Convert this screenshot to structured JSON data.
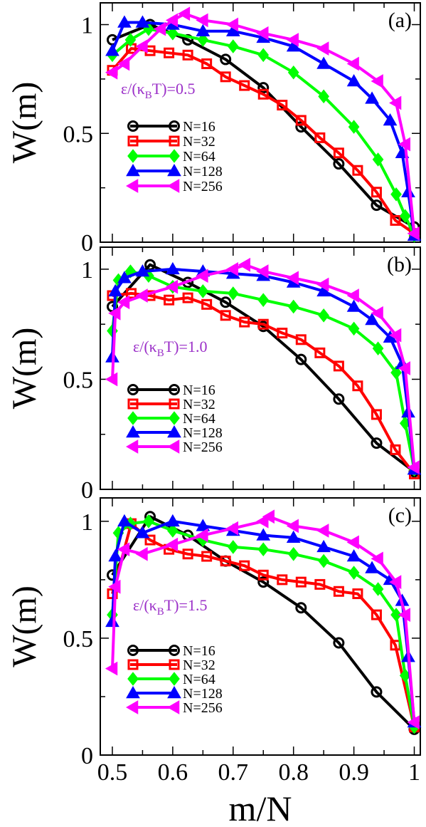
{
  "figure": {
    "xlabel": "m/N",
    "x_tick_labels": [
      "0.5",
      "0.6",
      "0.7",
      "0.8",
      "0.9",
      "1"
    ],
    "colors": {
      "N=16": "#000000",
      "N=32": "#ff0000",
      "N=64": "#00ff00",
      "N=128": "#0000ff",
      "N=256": "#ff00ff",
      "annotation": "#9b30c8"
    }
  },
  "chart_data": [
    {
      "type": "line",
      "panel_label": "(a)",
      "annotation": "ε/(κ_BT)=0.5",
      "ylabel": "W(m)",
      "xlim": [
        0.48,
        1.01
      ],
      "ylim": [
        0,
        1.1
      ],
      "y_tick_labels": [
        "0",
        "0.5",
        "1"
      ],
      "legend_placement": "left-center",
      "series": [
        {
          "name": "N=16",
          "marker": "circle",
          "x": [
            0.5,
            0.5625,
            0.625,
            0.6875,
            0.75,
            0.8125,
            0.875,
            0.9375,
            1.0
          ],
          "y": [
            0.93,
            1.0,
            0.93,
            0.84,
            0.71,
            0.53,
            0.36,
            0.17,
            0.07
          ]
        },
        {
          "name": "N=32",
          "marker": "square",
          "x": [
            0.5,
            0.53125,
            0.5625,
            0.59375,
            0.625,
            0.65625,
            0.6875,
            0.71875,
            0.75,
            0.78125,
            0.8125,
            0.84375,
            0.875,
            0.90625,
            0.9375,
            0.96875,
            1.0
          ],
          "y": [
            0.79,
            0.89,
            0.88,
            0.87,
            0.86,
            0.82,
            0.76,
            0.72,
            0.68,
            0.63,
            0.56,
            0.48,
            0.41,
            0.33,
            0.23,
            0.1,
            0.04
          ]
        },
        {
          "name": "N=64",
          "marker": "diamond",
          "x": [
            0.5,
            0.53,
            0.56,
            0.6,
            0.65,
            0.7,
            0.75,
            0.8,
            0.85,
            0.9,
            0.94,
            0.97,
            0.985,
            1.0
          ],
          "y": [
            0.86,
            0.93,
            0.98,
            0.96,
            0.93,
            0.9,
            0.86,
            0.78,
            0.67,
            0.53,
            0.38,
            0.22,
            0.12,
            0.03
          ]
        },
        {
          "name": "N=128",
          "marker": "triangle-up",
          "x": [
            0.5,
            0.52,
            0.55,
            0.6,
            0.65,
            0.7,
            0.75,
            0.8,
            0.85,
            0.9,
            0.93,
            0.96,
            0.98,
            0.99,
            1.0
          ],
          "y": [
            0.88,
            1.01,
            1.01,
            1.0,
            0.97,
            0.97,
            0.94,
            0.9,
            0.82,
            0.74,
            0.66,
            0.56,
            0.41,
            0.23,
            0.03
          ]
        },
        {
          "name": "N=256",
          "marker": "triangle-left",
          "x": [
            0.5,
            0.52,
            0.55,
            0.58,
            0.6,
            0.62,
            0.65,
            0.7,
            0.75,
            0.8,
            0.85,
            0.9,
            0.94,
            0.97,
            0.985,
            1.0
          ],
          "y": [
            0.78,
            0.82,
            0.9,
            0.98,
            1.02,
            1.05,
            1.02,
            1.0,
            0.96,
            0.93,
            0.89,
            0.82,
            0.74,
            0.64,
            0.45,
            0.04
          ]
        }
      ]
    },
    {
      "type": "line",
      "panel_label": "(b)",
      "annotation": "ε/(κ_BT)=1.0",
      "ylabel": "W(m)",
      "xlim": [
        0.48,
        1.01
      ],
      "ylim": [
        0,
        1.1
      ],
      "y_tick_labels": [
        "0",
        "0.5",
        "1"
      ],
      "legend_placement": "bottom-left",
      "series": [
        {
          "name": "N=16",
          "marker": "circle",
          "x": [
            0.5,
            0.5625,
            0.625,
            0.6875,
            0.75,
            0.8125,
            0.875,
            0.9375,
            1.0
          ],
          "y": [
            0.83,
            1.02,
            0.94,
            0.85,
            0.74,
            0.59,
            0.41,
            0.21,
            0.08
          ]
        },
        {
          "name": "N=32",
          "marker": "square",
          "x": [
            0.5,
            0.53125,
            0.5625,
            0.59375,
            0.625,
            0.65625,
            0.6875,
            0.71875,
            0.75,
            0.78125,
            0.8125,
            0.84375,
            0.875,
            0.90625,
            0.9375,
            0.96875,
            1.0
          ],
          "y": [
            0.88,
            0.89,
            0.88,
            0.86,
            0.87,
            0.84,
            0.79,
            0.76,
            0.75,
            0.71,
            0.68,
            0.62,
            0.56,
            0.47,
            0.34,
            0.18,
            0.07
          ]
        },
        {
          "name": "N=64",
          "marker": "diamond",
          "x": [
            0.5,
            0.51,
            0.53,
            0.56,
            0.6,
            0.65,
            0.7,
            0.75,
            0.8,
            0.85,
            0.9,
            0.94,
            0.97,
            0.985,
            1.0
          ],
          "y": [
            0.72,
            0.95,
            0.99,
            0.97,
            0.92,
            0.9,
            0.89,
            0.86,
            0.83,
            0.79,
            0.73,
            0.64,
            0.53,
            0.3,
            0.09
          ]
        },
        {
          "name": "N=128",
          "marker": "triangle-up",
          "x": [
            0.5,
            0.505,
            0.52,
            0.55,
            0.6,
            0.65,
            0.7,
            0.75,
            0.8,
            0.85,
            0.9,
            0.93,
            0.96,
            0.98,
            0.99,
            1.0
          ],
          "y": [
            0.6,
            0.9,
            0.96,
            0.99,
            1.0,
            0.99,
            0.98,
            0.97,
            0.94,
            0.9,
            0.83,
            0.77,
            0.69,
            0.57,
            0.35,
            0.09
          ]
        },
        {
          "name": "N=256",
          "marker": "triangle-left",
          "x": [
            0.5,
            0.505,
            0.52,
            0.55,
            0.6,
            0.65,
            0.7,
            0.72,
            0.75,
            0.8,
            0.85,
            0.9,
            0.94,
            0.97,
            0.985,
            1.0
          ],
          "y": [
            0.5,
            0.8,
            0.85,
            0.88,
            0.92,
            0.97,
            1.0,
            1.02,
            0.99,
            0.96,
            0.93,
            0.88,
            0.8,
            0.7,
            0.55,
            0.1
          ]
        }
      ]
    },
    {
      "type": "line",
      "panel_label": "(c)",
      "annotation": "ε/(κ_BT)=1.5",
      "ylabel": "W(m)",
      "xlim": [
        0.48,
        1.01
      ],
      "ylim": [
        0,
        1.1
      ],
      "y_tick_labels": [
        "0",
        "0.5",
        "1"
      ],
      "legend_placement": "bottom-left",
      "series": [
        {
          "name": "N=16",
          "marker": "circle",
          "x": [
            0.5,
            0.5625,
            0.625,
            0.6875,
            0.75,
            0.8125,
            0.875,
            0.9375,
            1.0
          ],
          "y": [
            0.77,
            1.02,
            0.94,
            0.83,
            0.74,
            0.63,
            0.48,
            0.27,
            0.11
          ]
        },
        {
          "name": "N=32",
          "marker": "square",
          "x": [
            0.5,
            0.53125,
            0.5625,
            0.59375,
            0.625,
            0.65625,
            0.6875,
            0.71875,
            0.75,
            0.78125,
            0.8125,
            0.84375,
            0.875,
            0.90625,
            0.9375,
            0.96875,
            1.0
          ],
          "y": [
            0.69,
            0.99,
            0.92,
            0.88,
            0.86,
            0.85,
            0.83,
            0.81,
            0.77,
            0.75,
            0.74,
            0.73,
            0.7,
            0.69,
            0.6,
            0.47,
            0.12
          ]
        },
        {
          "name": "N=64",
          "marker": "diamond",
          "x": [
            0.5,
            0.51,
            0.53,
            0.56,
            0.6,
            0.65,
            0.7,
            0.75,
            0.8,
            0.85,
            0.9,
            0.94,
            0.97,
            0.985,
            1.0
          ],
          "y": [
            0.6,
            0.95,
            0.99,
            1.0,
            0.96,
            0.92,
            0.89,
            0.88,
            0.86,
            0.83,
            0.78,
            0.71,
            0.6,
            0.34,
            0.12
          ]
        },
        {
          "name": "N=128",
          "marker": "triangle-up",
          "x": [
            0.5,
            0.505,
            0.52,
            0.55,
            0.6,
            0.65,
            0.7,
            0.75,
            0.8,
            0.85,
            0.9,
            0.93,
            0.96,
            0.98,
            0.99,
            1.0
          ],
          "y": [
            0.57,
            0.85,
            1.0,
            0.95,
            1.0,
            0.98,
            0.96,
            0.94,
            0.93,
            0.89,
            0.85,
            0.8,
            0.75,
            0.66,
            0.42,
            0.14
          ]
        },
        {
          "name": "N=256",
          "marker": "triangle-left",
          "x": [
            0.5,
            0.505,
            0.52,
            0.55,
            0.6,
            0.65,
            0.7,
            0.75,
            0.76,
            0.8,
            0.85,
            0.9,
            0.94,
            0.97,
            0.985,
            1.0
          ],
          "y": [
            0.37,
            0.72,
            0.88,
            0.86,
            0.9,
            0.94,
            0.97,
            1.0,
            1.02,
            0.98,
            0.96,
            0.91,
            0.84,
            0.74,
            0.6,
            0.14
          ]
        }
      ]
    }
  ]
}
